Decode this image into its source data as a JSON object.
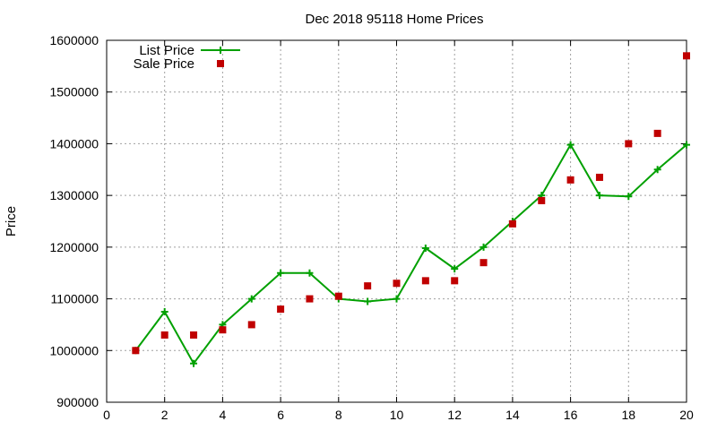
{
  "chart_data": {
    "type": "line",
    "title": "Dec 2018 95118 Home Prices",
    "xlabel": "",
    "ylabel": "Price",
    "xlim": [
      0,
      20
    ],
    "ylim": [
      900000,
      1600000
    ],
    "x_ticks": [
      0,
      2,
      4,
      6,
      8,
      10,
      12,
      14,
      16,
      18,
      20
    ],
    "y_ticks": [
      900000,
      1000000,
      1100000,
      1200000,
      1300000,
      1400000,
      1500000,
      1600000
    ],
    "grid": true,
    "legend_position": "top-left",
    "series": [
      {
        "name": "List Price",
        "style": "line-plus",
        "color": "#00a000",
        "x": [
          1,
          2,
          3,
          4,
          5,
          6,
          7,
          8,
          9,
          10,
          11,
          12,
          13,
          14,
          15,
          16,
          17,
          18,
          19,
          20
        ],
        "values": [
          1000000,
          1075000,
          975000,
          1050000,
          1100000,
          1150000,
          1150000,
          1100000,
          1095000,
          1100000,
          1198000,
          1158000,
          1200000,
          1250000,
          1300000,
          1398000,
          1300000,
          1298000,
          1350000,
          1398000
        ]
      },
      {
        "name": "Sale Price",
        "style": "square-markers",
        "color": "#c00000",
        "x": [
          1,
          2,
          3,
          4,
          5,
          6,
          7,
          8,
          9,
          10,
          11,
          12,
          13,
          14,
          15,
          16,
          17,
          18,
          19,
          20
        ],
        "values": [
          1000000,
          1030000,
          1030000,
          1040000,
          1050000,
          1080000,
          1100000,
          1105000,
          1125000,
          1130000,
          1135000,
          1135000,
          1170000,
          1245000,
          1290000,
          1330000,
          1335000,
          1400000,
          1420000,
          1570000
        ]
      }
    ]
  }
}
